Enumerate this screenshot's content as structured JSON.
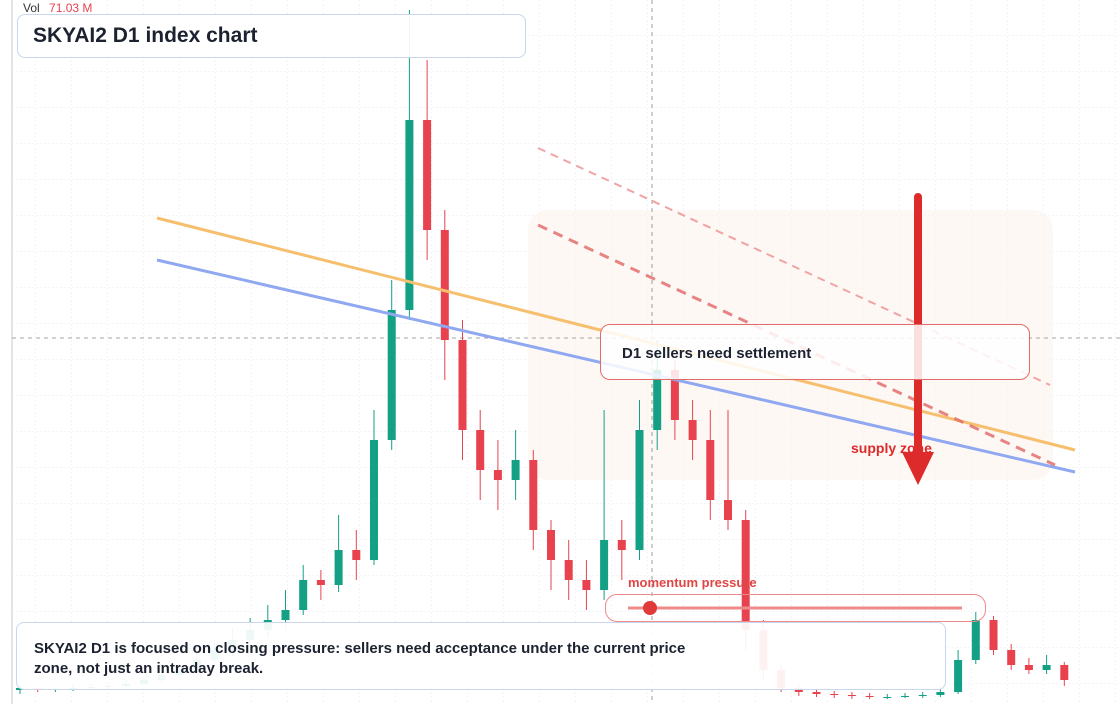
{
  "header": {
    "vol_label": "Vol",
    "vol_value": "71.03 M",
    "title": "SKYAI2 D1 index chart"
  },
  "chart_data": {
    "type": "candlestick",
    "up_color": "#14a085",
    "down_color": "#e8424f",
    "ylim": [
      0,
      700
    ],
    "ohlc": [
      [
        10,
        16,
        6,
        12
      ],
      [
        12,
        14,
        8,
        10
      ],
      [
        10,
        13,
        8,
        11
      ],
      [
        11,
        15,
        9,
        12
      ],
      [
        12,
        16,
        10,
        13
      ],
      [
        13,
        17,
        11,
        14
      ],
      [
        14,
        20,
        12,
        16
      ],
      [
        16,
        24,
        14,
        20
      ],
      [
        20,
        30,
        18,
        25
      ],
      [
        25,
        36,
        22,
        30
      ],
      [
        30,
        48,
        26,
        40
      ],
      [
        40,
        60,
        35,
        50
      ],
      [
        50,
        72,
        44,
        60
      ],
      [
        60,
        82,
        52,
        70
      ],
      [
        70,
        95,
        62,
        80
      ],
      [
        80,
        110,
        70,
        90
      ],
      [
        90,
        135,
        85,
        120
      ],
      [
        120,
        130,
        100,
        115
      ],
      [
        115,
        185,
        108,
        150
      ],
      [
        150,
        170,
        120,
        140
      ],
      [
        140,
        290,
        135,
        260
      ],
      [
        260,
        420,
        250,
        390
      ],
      [
        390,
        690,
        380,
        580
      ],
      [
        580,
        640,
        440,
        470
      ],
      [
        470,
        490,
        320,
        360
      ],
      [
        360,
        380,
        240,
        270
      ],
      [
        270,
        290,
        200,
        230
      ],
      [
        230,
        260,
        190,
        220
      ],
      [
        220,
        270,
        200,
        240
      ],
      [
        240,
        250,
        150,
        170
      ],
      [
        170,
        180,
        110,
        140
      ],
      [
        140,
        160,
        100,
        120
      ],
      [
        120,
        140,
        90,
        110
      ],
      [
        110,
        290,
        100,
        160
      ],
      [
        160,
        180,
        120,
        150
      ],
      [
        150,
        300,
        140,
        270
      ],
      [
        270,
        360,
        250,
        330
      ],
      [
        330,
        340,
        260,
        280
      ],
      [
        280,
        300,
        240,
        260
      ],
      [
        260,
        290,
        180,
        200
      ],
      [
        200,
        290,
        170,
        180
      ],
      [
        180,
        190,
        50,
        70
      ],
      [
        70,
        80,
        20,
        30
      ],
      [
        30,
        35,
        8,
        12
      ],
      [
        12,
        15,
        4,
        8
      ],
      [
        8,
        12,
        3,
        6
      ],
      [
        6,
        9,
        2,
        5
      ],
      [
        5,
        8,
        1,
        4
      ],
      [
        4,
        7,
        1,
        3
      ],
      [
        3,
        6,
        1,
        3
      ],
      [
        3,
        7,
        2,
        4
      ],
      [
        4,
        8,
        2,
        5
      ],
      [
        5,
        14,
        3,
        8
      ],
      [
        8,
        50,
        6,
        40
      ],
      [
        40,
        88,
        36,
        80
      ],
      [
        80,
        84,
        45,
        50
      ],
      [
        50,
        56,
        30,
        35
      ],
      [
        35,
        42,
        26,
        30
      ],
      [
        30,
        45,
        26,
        35
      ],
      [
        35,
        38,
        14,
        20
      ]
    ]
  },
  "annotations": {
    "settlement": "D1 sellers need settlement",
    "supply": "supply zone",
    "momentum": "momentum pressure"
  },
  "note": "SKYAI2 D1 is focused on closing pressure: sellers need acceptance under the current price zone, not just an intraday break."
}
